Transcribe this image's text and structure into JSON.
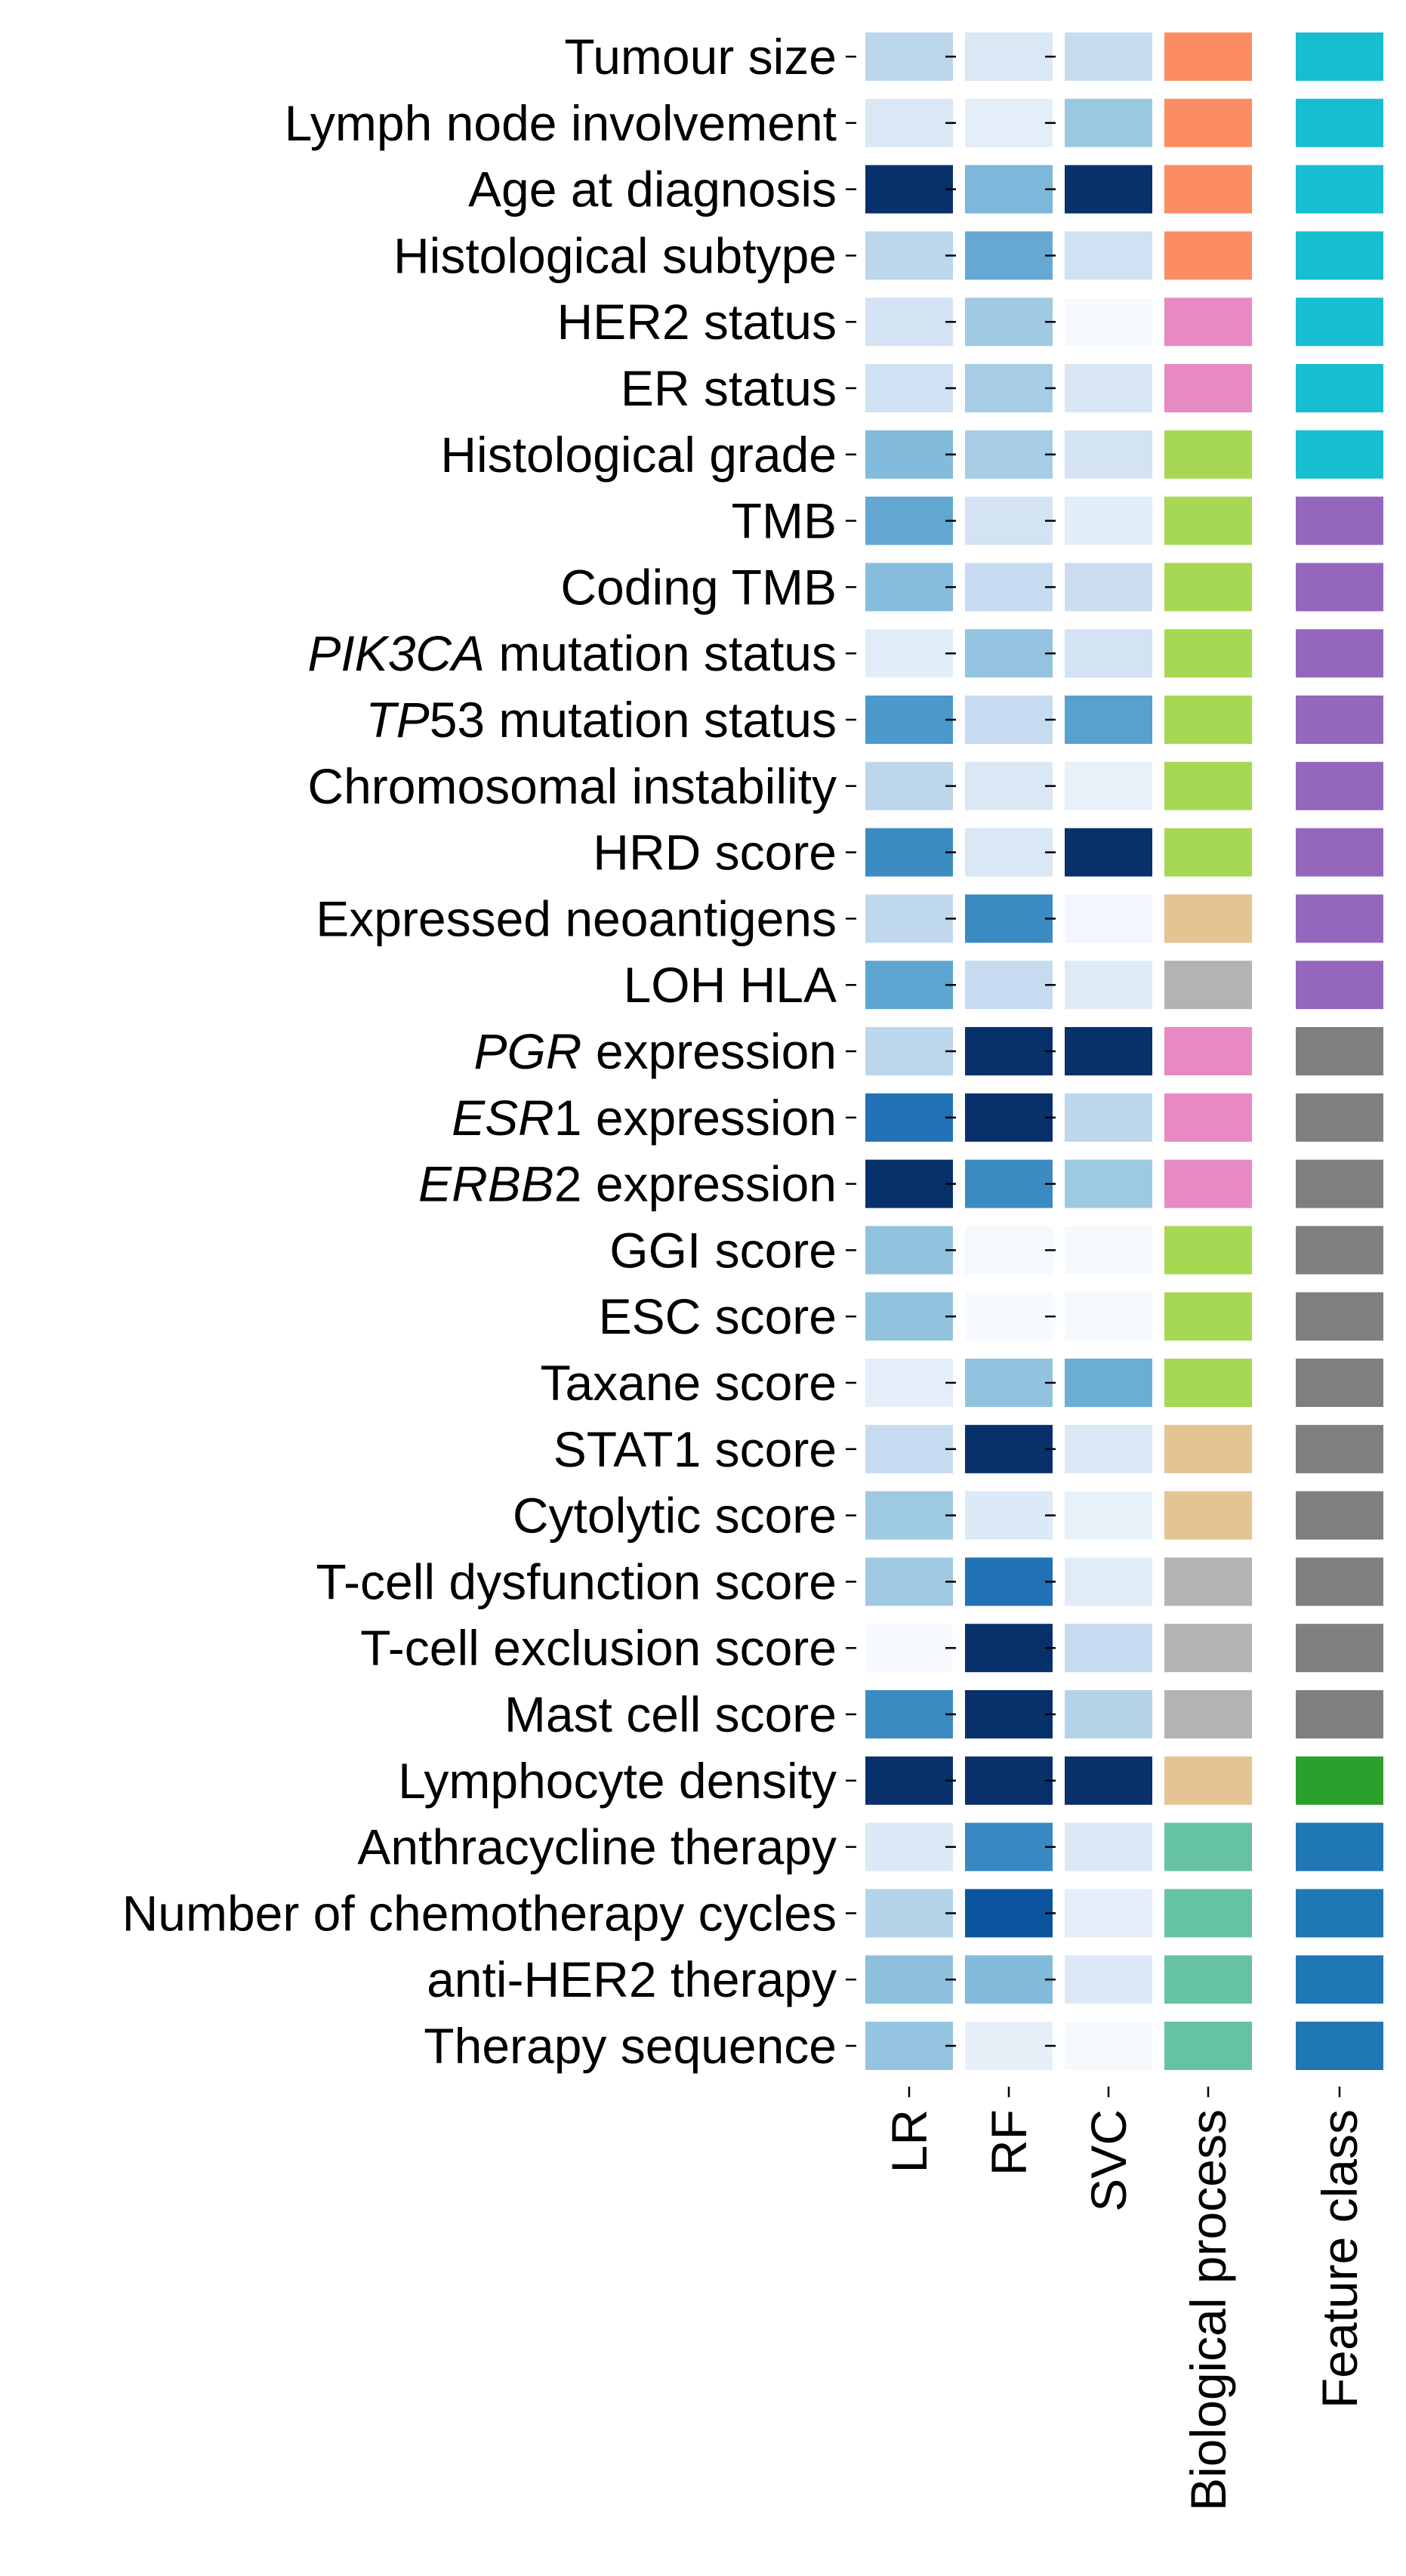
{
  "chart_data": {
    "type": "heatmap",
    "title": "",
    "xlabel": "",
    "ylabel": "",
    "columns": [
      "LR",
      "RF",
      "SVC",
      "Biological process",
      "Feature class"
    ],
    "rows": [
      {
        "segments": [
          {
            "text": "Tumour size"
          }
        ]
      },
      {
        "segments": [
          {
            "text": "Lymph node involvement"
          }
        ]
      },
      {
        "segments": [
          {
            "text": "Age at diagnosis"
          }
        ]
      },
      {
        "segments": [
          {
            "text": "Histological subtype"
          }
        ]
      },
      {
        "segments": [
          {
            "text": "HER2 status"
          }
        ]
      },
      {
        "segments": [
          {
            "text": "ER status"
          }
        ]
      },
      {
        "segments": [
          {
            "text": "Histological grade"
          }
        ]
      },
      {
        "segments": [
          {
            "text": "TMB"
          }
        ]
      },
      {
        "segments": [
          {
            "text": "Coding TMB"
          }
        ]
      },
      {
        "segments": [
          {
            "text": "PIK3CA",
            "italic": true
          },
          {
            "text": " mutation status"
          }
        ]
      },
      {
        "segments": [
          {
            "text": "TP",
            "italic": true
          },
          {
            "text": "53 mutation status"
          }
        ]
      },
      {
        "segments": [
          {
            "text": "Chromosomal instability"
          }
        ]
      },
      {
        "segments": [
          {
            "text": "HRD score"
          }
        ]
      },
      {
        "segments": [
          {
            "text": "Expressed neoantigens"
          }
        ]
      },
      {
        "segments": [
          {
            "text": "LOH HLA"
          }
        ]
      },
      {
        "segments": [
          {
            "text": "PGR",
            "italic": true
          },
          {
            "text": " expression"
          }
        ]
      },
      {
        "segments": [
          {
            "text": "ESR",
            "italic": true
          },
          {
            "text": "1 expression"
          }
        ]
      },
      {
        "segments": [
          {
            "text": "ERBB",
            "italic": true
          },
          {
            "text": "2 expression"
          }
        ]
      },
      {
        "segments": [
          {
            "text": "GGI score"
          }
        ]
      },
      {
        "segments": [
          {
            "text": "ESC score"
          }
        ]
      },
      {
        "segments": [
          {
            "text": "Taxane score"
          }
        ]
      },
      {
        "segments": [
          {
            "text": "STAT1 score"
          }
        ]
      },
      {
        "segments": [
          {
            "text": "Cytolytic score"
          }
        ]
      },
      {
        "segments": [
          {
            "text": "T-cell dysfunction score"
          }
        ]
      },
      {
        "segments": [
          {
            "text": "T-cell exclusion score"
          }
        ]
      },
      {
        "segments": [
          {
            "text": "Mast cell score"
          }
        ]
      },
      {
        "segments": [
          {
            "text": "Lymphocyte density"
          }
        ]
      },
      {
        "segments": [
          {
            "text": "Anthracycline therapy"
          }
        ]
      },
      {
        "segments": [
          {
            "text": "Number of chemotherapy cycles"
          }
        ]
      },
      {
        "segments": [
          {
            "text": "anti-HER2 therapy"
          }
        ]
      },
      {
        "segments": [
          {
            "text": "Therapy sequence"
          }
        ]
      }
    ],
    "cells": [
      [
        "#bcd6ec",
        "#dae8f5",
        "#c7dcef",
        "#fc8d62",
        "#17becf"
      ],
      [
        "#dae8f5",
        "#e3eef8",
        "#9ac8e0",
        "#fc8d62",
        "#17becf"
      ],
      [
        "#08306b",
        "#7db8da",
        "#08306b",
        "#fc8d62",
        "#17becf"
      ],
      [
        "#bcd6ec",
        "#65a9d3",
        "#cfe1f2",
        "#fc8d62",
        "#17becf"
      ],
      [
        "#d3e3f3",
        "#a0cae1",
        "#f6faff",
        "#e78ac3",
        "#17becf"
      ],
      [
        "#cfe1f2",
        "#a6cde3",
        "#d9e7f5",
        "#e78ac3",
        "#17becf"
      ],
      [
        "#82bbdb",
        "#a6cde3",
        "#d3e3f3",
        "#a6d854",
        "#17becf"
      ],
      [
        "#61a7d2",
        "#d3e3f3",
        "#e1edf8",
        "#a6d854",
        "#9467bd"
      ],
      [
        "#86bddc",
        "#c6dbef",
        "#cadef0",
        "#a6d854",
        "#9467bd"
      ],
      [
        "#e1edf8",
        "#94c4df",
        "#d3e3f3",
        "#a6d854",
        "#9467bd"
      ],
      [
        "#4b98ca",
        "#c6dbef",
        "#58a1cf",
        "#a6d854",
        "#9467bd"
      ],
      [
        "#bcd6ec",
        "#dae8f5",
        "#e8f1fa",
        "#a6d854",
        "#9467bd"
      ],
      [
        "#3b8bc2",
        "#dae8f5",
        "#08306b",
        "#a6d854",
        "#9467bd"
      ],
      [
        "#c0d8ed",
        "#3b8bc2",
        "#f2f7fd",
        "#e5c494",
        "#9467bd"
      ],
      [
        "#5ea5d1",
        "#c6dbef",
        "#deebf7",
        "#b3b3b3",
        "#9467bd"
      ],
      [
        "#bcd6ec",
        "#08306b",
        "#08306b",
        "#e78ac3",
        "#7f7f7f"
      ],
      [
        "#2171b5",
        "#08306b",
        "#bcd6ec",
        "#e78ac3",
        "#7f7f7f"
      ],
      [
        "#08306b",
        "#3b8bc2",
        "#9ecae1",
        "#e78ac3",
        "#7f7f7f"
      ],
      [
        "#91c3de",
        "#f4f9fe",
        "#f4f9fe",
        "#a6d854",
        "#7f7f7f"
      ],
      [
        "#91c3de",
        "#f7fbff",
        "#f4f9fe",
        "#a6d854",
        "#7f7f7f"
      ],
      [
        "#e3eef9",
        "#91c3de",
        "#6aaed6",
        "#a6d854",
        "#7f7f7f"
      ],
      [
        "#c6dbef",
        "#08306b",
        "#dae8f5",
        "#e5c494",
        "#7f7f7f"
      ],
      [
        "#9ecae1",
        "#dce9f6",
        "#e8f1fa",
        "#e5c494",
        "#7f7f7f"
      ],
      [
        "#a0cae1",
        "#2171b5",
        "#e0ecf8",
        "#b3b3b3",
        "#7f7f7f"
      ],
      [
        "#f7fbff",
        "#08306b",
        "#c6dbef",
        "#b3b3b3",
        "#7f7f7f"
      ],
      [
        "#3b8bc2",
        "#08306b",
        "#b5d4e9",
        "#b3b3b3",
        "#7f7f7f"
      ],
      [
        "#08306b",
        "#08306b",
        "#08306b",
        "#e5c494",
        "#2ca02c"
      ],
      [
        "#dbe9f6",
        "#3888c1",
        "#dbe9f6",
        "#66c2a5",
        "#1f77b4"
      ],
      [
        "#b3d3e8",
        "#0b559f",
        "#e3eef9",
        "#66c2a5",
        "#1f77b4"
      ],
      [
        "#8cc0dd",
        "#82bbdb",
        "#dee9f7",
        "#66c2a5",
        "#1f77b4"
      ],
      [
        "#94c4df",
        "#e7f0f9",
        "#f4f9fe",
        "#66c2a5",
        "#1f77b4"
      ]
    ]
  }
}
